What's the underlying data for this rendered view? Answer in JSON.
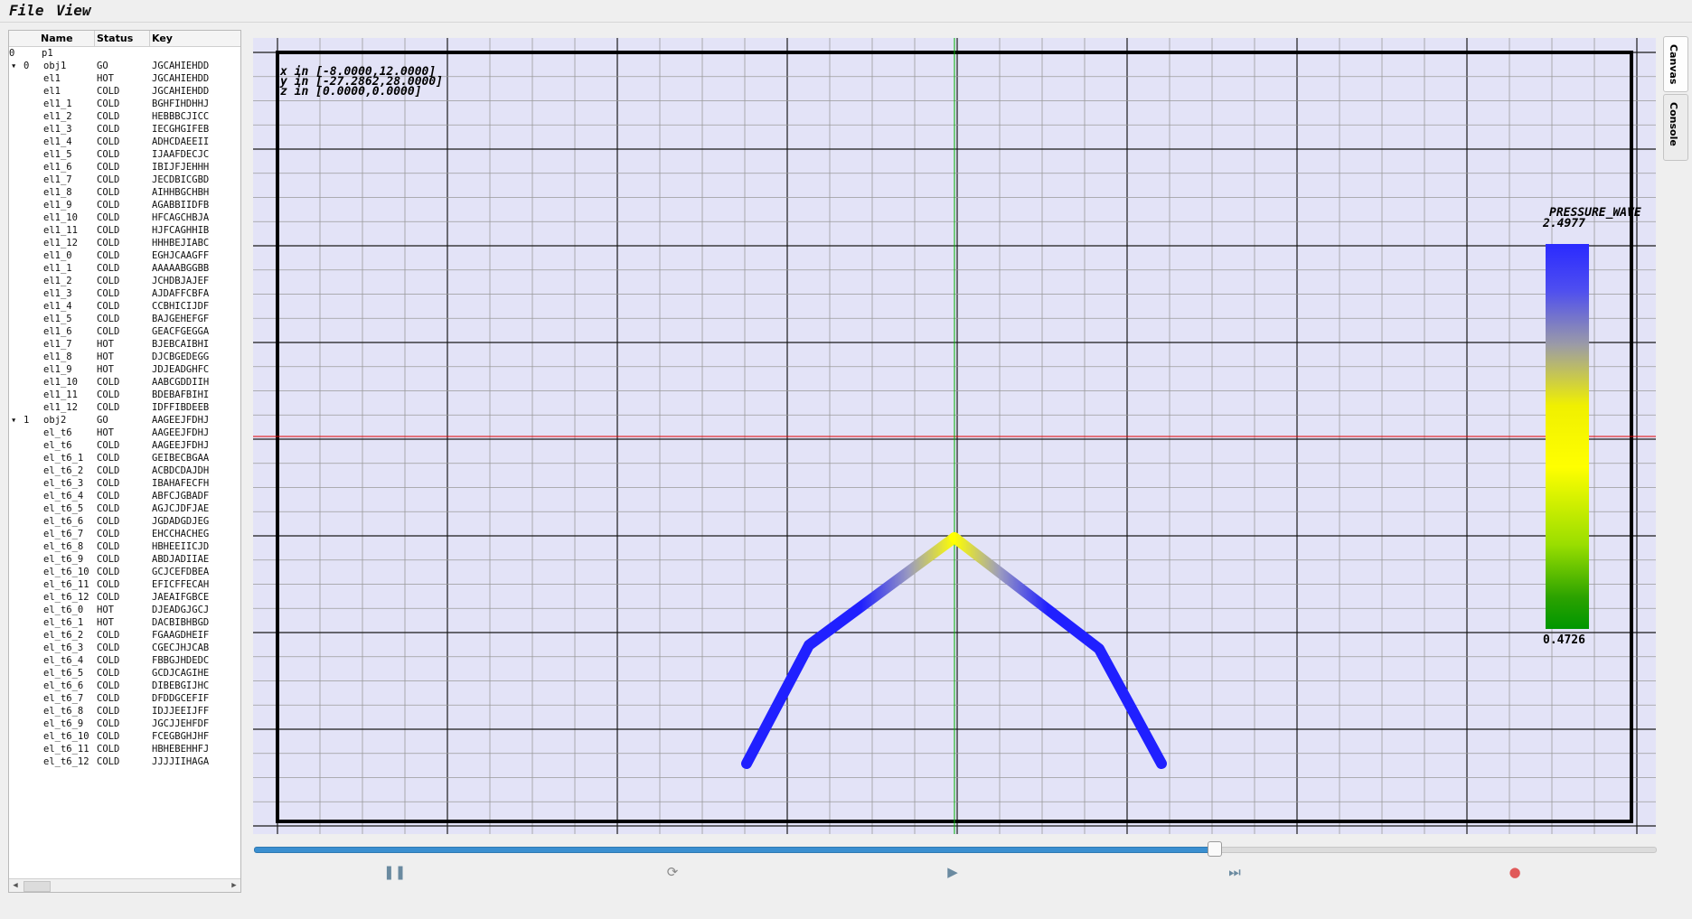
{
  "menu": {
    "file": "File",
    "view": "View"
  },
  "tree": {
    "columns": [
      "Name",
      "Status",
      "Key"
    ],
    "rows": [
      {
        "idx": "0",
        "tog": "",
        "name": "p1",
        "status": "",
        "key": "",
        "depth": 0
      },
      {
        "idx": "0",
        "tog": "▾",
        "name": "obj1",
        "status": "GO",
        "key": "JGCAHIEHDD",
        "depth": 1
      },
      {
        "idx": "",
        "tog": "",
        "name": "el1",
        "status": "HOT",
        "key": "JGCAHIEHDD",
        "depth": 2
      },
      {
        "idx": "",
        "tog": "",
        "name": "el1",
        "status": "COLD",
        "key": "JGCAHIEHDD",
        "depth": 2
      },
      {
        "idx": "",
        "tog": "",
        "name": "el1_1",
        "status": "COLD",
        "key": "BGHFIHDHHJ",
        "depth": 2
      },
      {
        "idx": "",
        "tog": "",
        "name": "el1_2",
        "status": "COLD",
        "key": "HEBBBCJICC",
        "depth": 2
      },
      {
        "idx": "",
        "tog": "",
        "name": "el1_3",
        "status": "COLD",
        "key": "IECGHGIFEB",
        "depth": 2
      },
      {
        "idx": "",
        "tog": "",
        "name": "el1_4",
        "status": "COLD",
        "key": "ADHCDAEEII",
        "depth": 2
      },
      {
        "idx": "",
        "tog": "",
        "name": "el1_5",
        "status": "COLD",
        "key": "IJAAFDECJC",
        "depth": 2
      },
      {
        "idx": "",
        "tog": "",
        "name": "el1_6",
        "status": "COLD",
        "key": "IBIJFJEHHH",
        "depth": 2
      },
      {
        "idx": "",
        "tog": "",
        "name": "el1_7",
        "status": "COLD",
        "key": "JECDBICGBD",
        "depth": 2
      },
      {
        "idx": "",
        "tog": "",
        "name": "el1_8",
        "status": "COLD",
        "key": "AIHHBGCHBH",
        "depth": 2
      },
      {
        "idx": "",
        "tog": "",
        "name": "el1_9",
        "status": "COLD",
        "key": "AGABBIIDFB",
        "depth": 2
      },
      {
        "idx": "",
        "tog": "",
        "name": "el1_10",
        "status": "COLD",
        "key": "HFCAGCHBJA",
        "depth": 2
      },
      {
        "idx": "",
        "tog": "",
        "name": "el1_11",
        "status": "COLD",
        "key": "HJFCAGHHIB",
        "depth": 2
      },
      {
        "idx": "",
        "tog": "",
        "name": "el1_12",
        "status": "COLD",
        "key": "HHHBEJIABC",
        "depth": 2
      },
      {
        "idx": "",
        "tog": "",
        "name": "el1_0",
        "status": "COLD",
        "key": "EGHJCAAGFF",
        "depth": 2
      },
      {
        "idx": "",
        "tog": "",
        "name": "el1_1",
        "status": "COLD",
        "key": "AAAAABGGBB",
        "depth": 2
      },
      {
        "idx": "",
        "tog": "",
        "name": "el1_2",
        "status": "COLD",
        "key": "JCHDBJAJEF",
        "depth": 2
      },
      {
        "idx": "",
        "tog": "",
        "name": "el1_3",
        "status": "COLD",
        "key": "AJDAFFCBFA",
        "depth": 2
      },
      {
        "idx": "",
        "tog": "",
        "name": "el1_4",
        "status": "COLD",
        "key": "CCBHICIJDF",
        "depth": 2
      },
      {
        "idx": "",
        "tog": "",
        "name": "el1_5",
        "status": "COLD",
        "key": "BAJGEHEFGF",
        "depth": 2
      },
      {
        "idx": "",
        "tog": "",
        "name": "el1_6",
        "status": "COLD",
        "key": "GEACFGEGGA",
        "depth": 2
      },
      {
        "idx": "",
        "tog": "",
        "name": "el1_7",
        "status": "HOT",
        "key": "BJEBCAIBHI",
        "depth": 2
      },
      {
        "idx": "",
        "tog": "",
        "name": "el1_8",
        "status": "HOT",
        "key": "DJCBGEDEGG",
        "depth": 2
      },
      {
        "idx": "",
        "tog": "",
        "name": "el1_9",
        "status": "HOT",
        "key": "JDJEADGHFC",
        "depth": 2
      },
      {
        "idx": "",
        "tog": "",
        "name": "el1_10",
        "status": "COLD",
        "key": "AABCGDDIIH",
        "depth": 2
      },
      {
        "idx": "",
        "tog": "",
        "name": "el1_11",
        "status": "COLD",
        "key": "BDEBAFBIHI",
        "depth": 2
      },
      {
        "idx": "",
        "tog": "",
        "name": "el1_12",
        "status": "COLD",
        "key": "IDFFIBDEEB",
        "depth": 2
      },
      {
        "idx": "1",
        "tog": "▾",
        "name": "obj2",
        "status": "GO",
        "key": "AAGEEJFDHJ",
        "depth": 1
      },
      {
        "idx": "",
        "tog": "",
        "name": "el_t6",
        "status": "HOT",
        "key": "AAGEEJFDHJ",
        "depth": 2
      },
      {
        "idx": "",
        "tog": "",
        "name": "el_t6",
        "status": "COLD",
        "key": "AAGEEJFDHJ",
        "depth": 2
      },
      {
        "idx": "",
        "tog": "",
        "name": "el_t6_1",
        "status": "COLD",
        "key": "GEIBECBGAA",
        "depth": 2
      },
      {
        "idx": "",
        "tog": "",
        "name": "el_t6_2",
        "status": "COLD",
        "key": "ACBDCDAJDH",
        "depth": 2
      },
      {
        "idx": "",
        "tog": "",
        "name": "el_t6_3",
        "status": "COLD",
        "key": "IBAHAFECFH",
        "depth": 2
      },
      {
        "idx": "",
        "tog": "",
        "name": "el_t6_4",
        "status": "COLD",
        "key": "ABFCJGBADF",
        "depth": 2
      },
      {
        "idx": "",
        "tog": "",
        "name": "el_t6_5",
        "status": "COLD",
        "key": "AGJCJDFJAE",
        "depth": 2
      },
      {
        "idx": "",
        "tog": "",
        "name": "el_t6_6",
        "status": "COLD",
        "key": "JGDADGDJEG",
        "depth": 2
      },
      {
        "idx": "",
        "tog": "",
        "name": "el_t6_7",
        "status": "COLD",
        "key": "EHCCHACHEG",
        "depth": 2
      },
      {
        "idx": "",
        "tog": "",
        "name": "el_t6_8",
        "status": "COLD",
        "key": "HBHEEIICJD",
        "depth": 2
      },
      {
        "idx": "",
        "tog": "",
        "name": "el_t6_9",
        "status": "COLD",
        "key": "ABDJADIIAE",
        "depth": 2
      },
      {
        "idx": "",
        "tog": "",
        "name": "el_t6_10",
        "status": "COLD",
        "key": "GCJCEFDBEA",
        "depth": 2
      },
      {
        "idx": "",
        "tog": "",
        "name": "el_t6_11",
        "status": "COLD",
        "key": "EFICFFECAH",
        "depth": 2
      },
      {
        "idx": "",
        "tog": "",
        "name": "el_t6_12",
        "status": "COLD",
        "key": "JAEAIFGBCE",
        "depth": 2
      },
      {
        "idx": "",
        "tog": "",
        "name": "el_t6_0",
        "status": "HOT",
        "key": "DJEADGJGCJ",
        "depth": 2
      },
      {
        "idx": "",
        "tog": "",
        "name": "el_t6_1",
        "status": "HOT",
        "key": "DACBIBHBGD",
        "depth": 2
      },
      {
        "idx": "",
        "tog": "",
        "name": "el_t6_2",
        "status": "COLD",
        "key": "FGAAGDHEIF",
        "depth": 2
      },
      {
        "idx": "",
        "tog": "",
        "name": "el_t6_3",
        "status": "COLD",
        "key": "CGECJHJCAB",
        "depth": 2
      },
      {
        "idx": "",
        "tog": "",
        "name": "el_t6_4",
        "status": "COLD",
        "key": "FBBGJHDEDC",
        "depth": 2
      },
      {
        "idx": "",
        "tog": "",
        "name": "el_t6_5",
        "status": "COLD",
        "key": "GCDJCAGIHE",
        "depth": 2
      },
      {
        "idx": "",
        "tog": "",
        "name": "el_t6_6",
        "status": "COLD",
        "key": "DIBEBGIJHC",
        "depth": 2
      },
      {
        "idx": "",
        "tog": "",
        "name": "el_t6_7",
        "status": "COLD",
        "key": "DFDDGCEFIF",
        "depth": 2
      },
      {
        "idx": "",
        "tog": "",
        "name": "el_t6_8",
        "status": "COLD",
        "key": "IDJJEEIJFF",
        "depth": 2
      },
      {
        "idx": "",
        "tog": "",
        "name": "el_t6_9",
        "status": "COLD",
        "key": "JGCJJEHFDF",
        "depth": 2
      },
      {
        "idx": "",
        "tog": "",
        "name": "el_t6_10",
        "status": "COLD",
        "key": "FCEGBGHJHF",
        "depth": 2
      },
      {
        "idx": "",
        "tog": "",
        "name": "el_t6_11",
        "status": "COLD",
        "key": "HBHEBEHHFJ",
        "depth": 2
      },
      {
        "idx": "",
        "tog": "",
        "name": "el_t6_12",
        "status": "COLD",
        "key": "JJJJIIHAGA",
        "depth": 2
      }
    ]
  },
  "plot": {
    "ranges": [
      "x in [-8.0000,12.0000]",
      "y in [-27.2862,28.0000]",
      "z in [0.0000,0.0000]"
    ],
    "colorbar": {
      "title": "PRESSURE_WAVE",
      "max": "2.4977",
      "min": "0.4726",
      "colors": [
        "#2a2aff",
        "#9a9aa8",
        "#ffff00",
        "#9ade00",
        "#009600"
      ]
    },
    "colors": {
      "background": "#e3e3f7",
      "x_axis": "#e00000",
      "y_axis": "#00b000"
    }
  },
  "playback": {
    "position_fraction": 0.685,
    "controls": [
      {
        "name": "pause-icon",
        "glyph": "❚❚",
        "color": "#6a8aa0"
      },
      {
        "name": "refresh-icon",
        "glyph": "⟳",
        "color": "#8a8a8a"
      },
      {
        "name": "play-icon",
        "glyph": "▶",
        "color": "#6a8aa0"
      },
      {
        "name": "skip-end-icon",
        "glyph": "⏭",
        "color": "#6a8aa0"
      },
      {
        "name": "stop-icon",
        "glyph": "●",
        "color": "#e05a5a"
      }
    ]
  },
  "sidetabs": {
    "canvas": "Canvas",
    "console": "Console"
  }
}
